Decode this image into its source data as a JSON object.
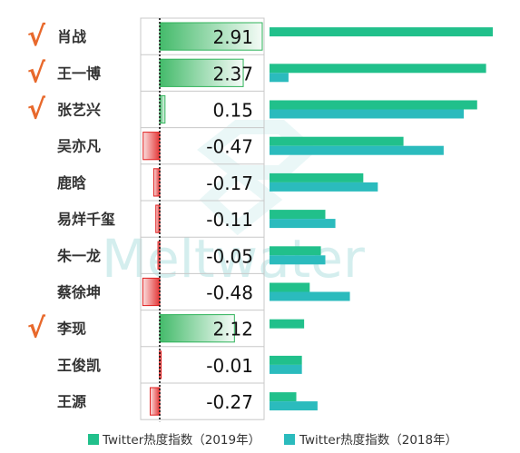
{
  "chart_data": {
    "type": "bar",
    "rows": [
      {
        "name": "肖战",
        "checked": true,
        "delta": 2.91,
        "delta_label": "2.91",
        "v2019": 100,
        "v2018": null
      },
      {
        "name": "王一博",
        "checked": true,
        "delta": 2.37,
        "delta_label": "2.37",
        "v2019": 97,
        "v2018": 8.5
      },
      {
        "name": "张艺兴",
        "checked": true,
        "delta": 0.15,
        "delta_label": "0.15",
        "v2019": 93,
        "v2018": 87
      },
      {
        "name": "吴亦凡",
        "checked": false,
        "delta": -0.47,
        "delta_label": "-0.47",
        "v2019": 60,
        "v2018": 78
      },
      {
        "name": "鹿晗",
        "checked": false,
        "delta": -0.17,
        "delta_label": "-0.17",
        "v2019": 42,
        "v2018": 48.5
      },
      {
        "name": "易烊千玺",
        "checked": false,
        "delta": -0.11,
        "delta_label": "-0.11",
        "v2019": 25,
        "v2018": 29.5
      },
      {
        "name": "朱一龙",
        "checked": false,
        "delta": -0.05,
        "delta_label": "-0.05",
        "v2019": 23,
        "v2018": 25
      },
      {
        "name": "蔡徐坤",
        "checked": false,
        "delta": -0.48,
        "delta_label": "-0.48",
        "v2019": 18,
        "v2018": 36
      },
      {
        "name": "李现",
        "checked": true,
        "delta": 2.12,
        "delta_label": "2.12",
        "v2019": 15.5,
        "v2018": null
      },
      {
        "name": "王俊凯",
        "checked": false,
        "delta": -0.01,
        "delta_label": "-0.01",
        "v2019": 14.5,
        "v2018": 14.5
      },
      {
        "name": "王源",
        "checked": false,
        "delta": -0.27,
        "delta_label": "-0.27",
        "v2019": 12,
        "v2018": 21.5
      }
    ],
    "series": [
      {
        "name": "Twitter热度指数（2019年）",
        "color": "#21c08b"
      },
      {
        "name": "Twitter热度指数（2018年）",
        "color": "#2bbbbd"
      }
    ],
    "check_mark": "√",
    "watermark": "Meltwater",
    "colors": {
      "check": "#e8692c",
      "positive": "#2fb35a",
      "negative": "#e02020",
      "name_text": "#333333"
    }
  }
}
